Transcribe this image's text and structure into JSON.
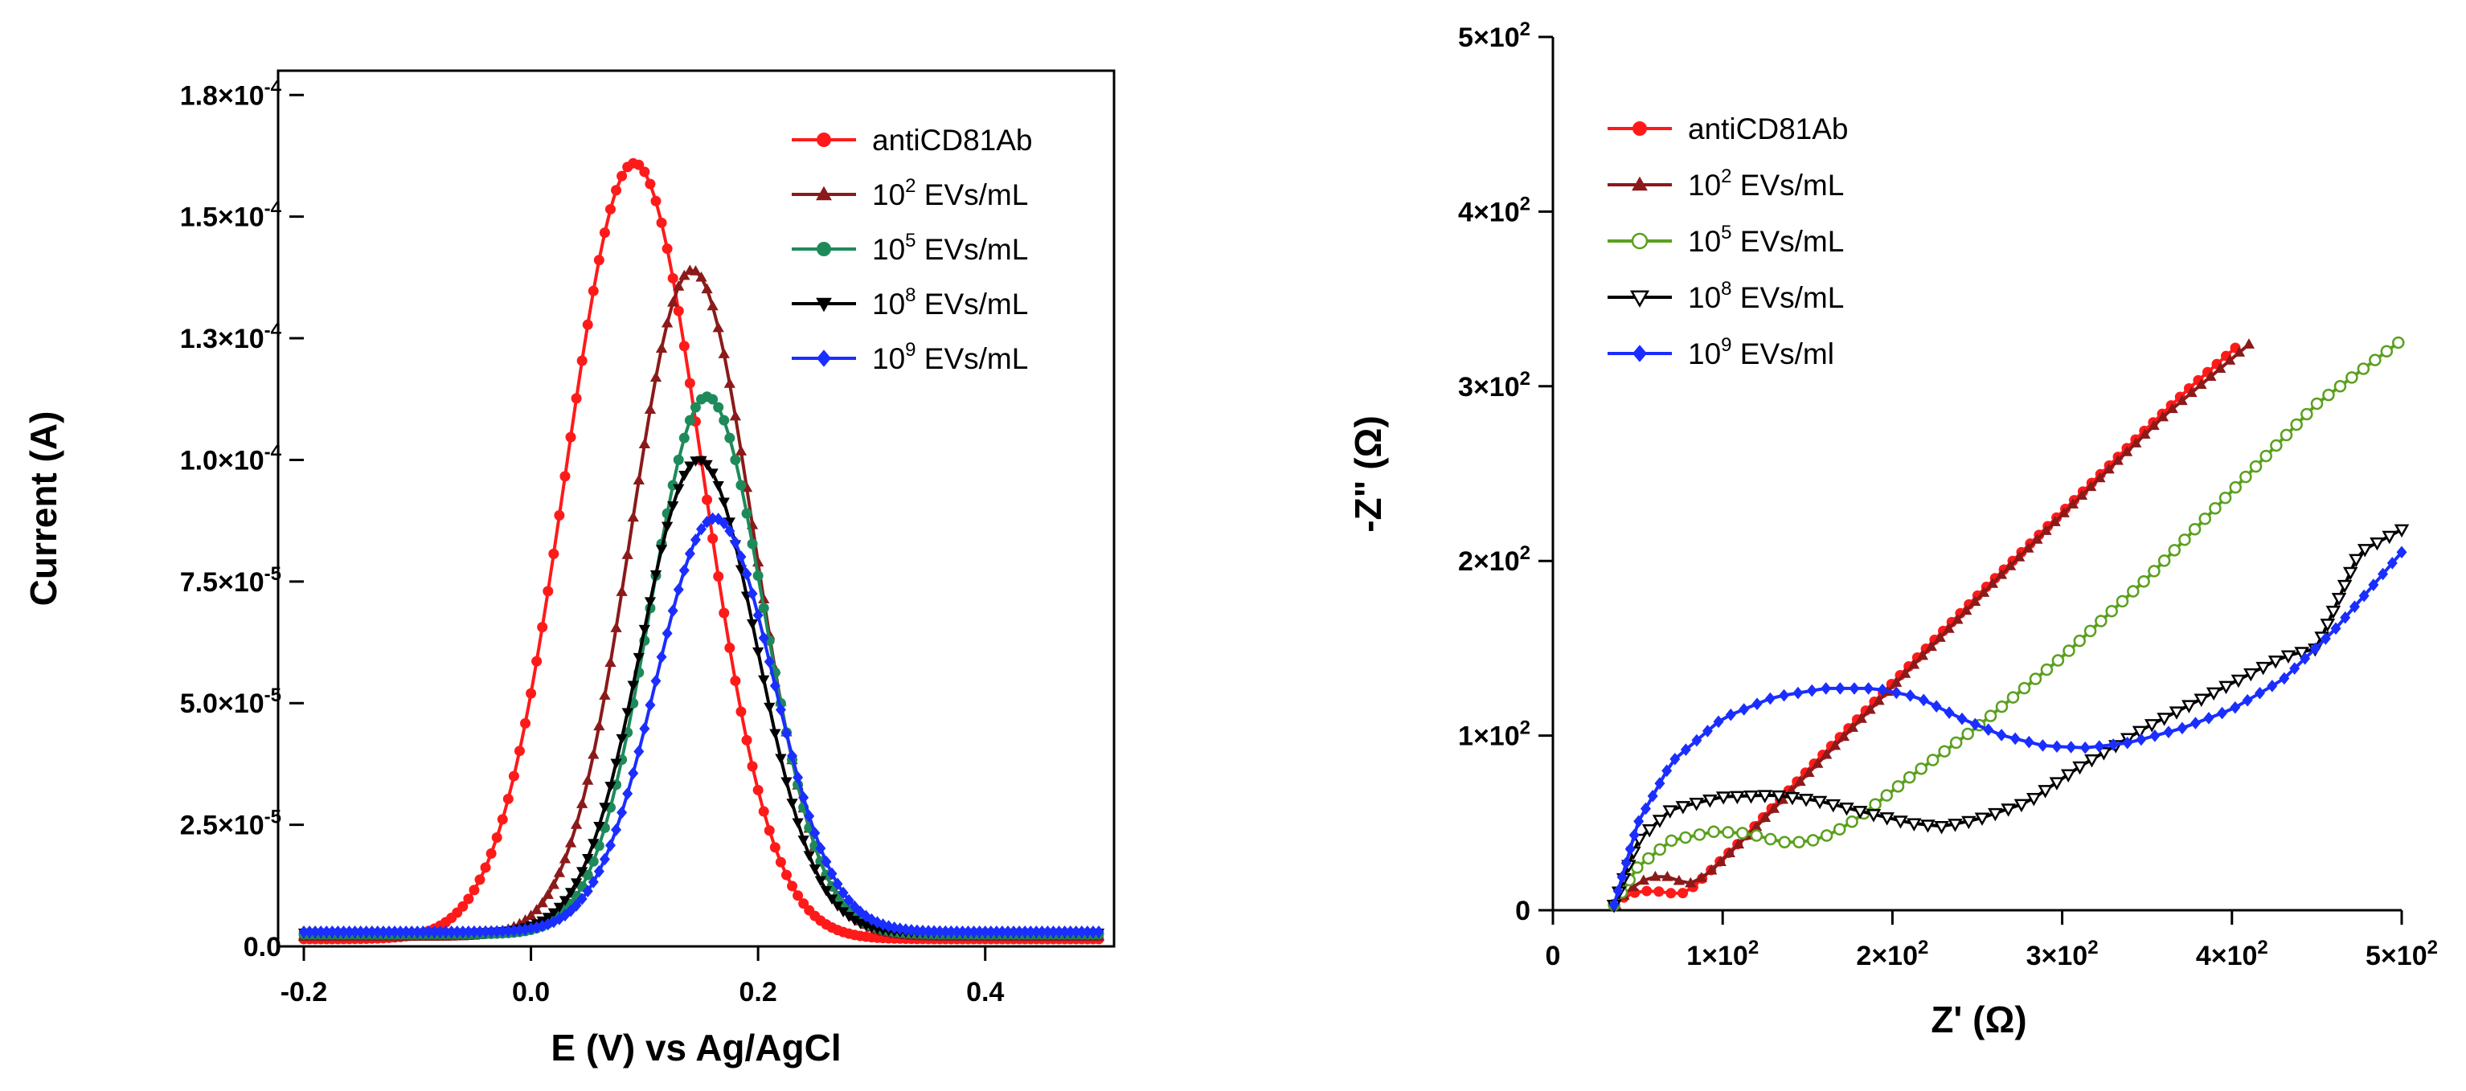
{
  "colors": {
    "antiCD81Ab": "#ff1a1a",
    "e2": "#8b1a1a",
    "e5_dpv": "#1e8a5a",
    "e5_eis": "#5aa01e",
    "e8": "#000000",
    "e9": "#1a2eff"
  },
  "chart_data": [
    {
      "type": "line",
      "title": "",
      "xlabel": "E (V) vs Ag/AgCl",
      "ylabel": "Current (A)",
      "xlim": [
        -0.2,
        0.5
      ],
      "ylim": [
        0,
        0.00018
      ],
      "grid": false,
      "legend_position": "top-right",
      "x_ticks": [
        {
          "value": -0.2,
          "label": "-0.2"
        },
        {
          "value": 0.0,
          "label": "0.0"
        },
        {
          "value": 0.2,
          "label": "0.2"
        },
        {
          "value": 0.4,
          "label": "0.4"
        }
      ],
      "y_ticks": [
        {
          "value": 0,
          "mant": "0.0",
          "exp": ""
        },
        {
          "value": 2.5e-05,
          "mant": "2.5×10",
          "exp": "-5"
        },
        {
          "value": 5e-05,
          "mant": "5.0×10",
          "exp": "-5"
        },
        {
          "value": 7.5e-05,
          "mant": "7.5×10",
          "exp": "-5"
        },
        {
          "value": 0.0001,
          "mant": "1.0×10",
          "exp": "-4"
        },
        {
          "value": 0.000125,
          "mant": "1.3×10",
          "exp": "-4"
        },
        {
          "value": 0.00015,
          "mant": "1.5×10",
          "exp": "-4"
        },
        {
          "value": 0.000175,
          "mant": "1.8×10",
          "exp": "-4"
        }
      ],
      "series": [
        {
          "name": "antiCD81Ab",
          "legend_base": "antiCD81Ab",
          "legend_exp": "",
          "legend_suffix": "",
          "color_key": "antiCD81Ab",
          "marker": "circle",
          "model": "gauss",
          "peak_x": 0.091,
          "peak_y": 0.000161,
          "sigma": 0.06,
          "baseline": 1.5e-06
        },
        {
          "name": "10^2 EVs/mL",
          "legend_base": "10",
          "legend_exp": "2",
          "legend_suffix": " EVs/mL",
          "color_key": "e2",
          "marker": "triangle-up",
          "model": "gauss",
          "peak_x": 0.142,
          "peak_y": 0.000139,
          "sigma": 0.054,
          "baseline": 2e-06
        },
        {
          "name": "10^5 EVs/mL",
          "legend_base": "10",
          "legend_exp": "5",
          "legend_suffix": " EVs/mL",
          "color_key": "e5_dpv",
          "marker": "circle",
          "model": "gauss",
          "peak_x": 0.155,
          "peak_y": 0.000113,
          "sigma": 0.05,
          "baseline": 2.5e-06
        },
        {
          "name": "10^8 EVs/mL",
          "legend_base": "10",
          "legend_exp": "8",
          "legend_suffix": " EVs/mL",
          "color_key": "e8",
          "marker": "triangle-down",
          "model": "gauss",
          "peak_x": 0.148,
          "peak_y": 0.0001,
          "sigma": 0.051,
          "baseline": 2.8e-06
        },
        {
          "name": "10^9 EVs/mL",
          "legend_base": "10",
          "legend_exp": "9",
          "legend_suffix": " EVs/mL",
          "color_key": "e9",
          "marker": "diamond",
          "model": "gauss",
          "peak_x": 0.162,
          "peak_y": 8.8e-05,
          "sigma": 0.052,
          "baseline": 3e-06
        }
      ]
    },
    {
      "type": "line",
      "title": "",
      "xlabel": "Z' (Ω)",
      "ylabel": "-Z\" (Ω)",
      "xlim": [
        0,
        500
      ],
      "ylim": [
        0,
        500
      ],
      "grid": false,
      "legend_position": "top-left",
      "x_ticks": [
        {
          "value": 0,
          "mant": "0",
          "exp": ""
        },
        {
          "value": 100,
          "mant": "1×10",
          "exp": "2"
        },
        {
          "value": 200,
          "mant": "2×10",
          "exp": "2"
        },
        {
          "value": 300,
          "mant": "3×10",
          "exp": "2"
        },
        {
          "value": 400,
          "mant": "4×10",
          "exp": "2"
        },
        {
          "value": 500,
          "mant": "5×10",
          "exp": "2"
        }
      ],
      "y_ticks": [
        {
          "value": 0,
          "mant": "0",
          "exp": ""
        },
        {
          "value": 100,
          "mant": "1×10",
          "exp": "2"
        },
        {
          "value": 200,
          "mant": "2×10",
          "exp": "2"
        },
        {
          "value": 300,
          "mant": "3×10",
          "exp": "2"
        },
        {
          "value": 400,
          "mant": "4×10",
          "exp": "2"
        },
        {
          "value": 500,
          "mant": "5×10",
          "exp": "2"
        }
      ],
      "series": [
        {
          "name": "antiCD81Ab",
          "legend_base": "antiCD81Ab",
          "legend_exp": "",
          "legend_suffix": "",
          "color_key": "antiCD81Ab",
          "marker": "circle",
          "model": "nyquist",
          "anchors": [
            [
              36,
              3
            ],
            [
              44,
              9
            ],
            [
              52,
              11
            ],
            [
              60,
              11
            ],
            [
              68,
              10
            ],
            [
              74,
              9
            ],
            [
              80,
              11
            ],
            [
              90,
              20
            ],
            [
              110,
              39
            ],
            [
              150,
              80
            ],
            [
              200,
              130
            ],
            [
              250,
              180
            ],
            [
              300,
              228
            ],
            [
              350,
              276
            ],
            [
              375,
              299
            ],
            [
              402,
              322
            ]
          ]
        },
        {
          "name": "10^2 EVs/mL",
          "legend_base": "10",
          "legend_exp": "2",
          "legend_suffix": " EVs/mL",
          "color_key": "e2",
          "marker": "triangle-up",
          "model": "nyquist",
          "anchors": [
            [
              37,
              3
            ],
            [
              45,
              12
            ],
            [
              55,
              18
            ],
            [
              64,
              20
            ],
            [
              72,
              18
            ],
            [
              78,
              15
            ],
            [
              84,
              16
            ],
            [
              95,
              24
            ],
            [
              120,
              48
            ],
            [
              160,
              88
            ],
            [
              210,
              138
            ],
            [
              260,
              188
            ],
            [
              310,
              236
            ],
            [
              360,
              283
            ],
            [
              410,
              324
            ]
          ]
        },
        {
          "name": "10^5 EVs/mL",
          "legend_base": "10",
          "legend_exp": "5",
          "legend_suffix": " EVs/mL",
          "color_key": "e5_eis",
          "marker": "circle-open",
          "model": "nyquist",
          "anchors": [
            [
              36,
              3
            ],
            [
              50,
              25
            ],
            [
              70,
              40
            ],
            [
              95,
              45
            ],
            [
              115,
              44
            ],
            [
              135,
              39
            ],
            [
              150,
              39
            ],
            [
              165,
              44
            ],
            [
              180,
              53
            ],
            [
              210,
              76
            ],
            [
              250,
              105
            ],
            [
              300,
              145
            ],
            [
              350,
              190
            ],
            [
              400,
              240
            ],
            [
              450,
              290
            ],
            [
              498,
              325
            ]
          ]
        },
        {
          "name": "10^8 EVs/mL",
          "legend_base": "10",
          "legend_exp": "8",
          "legend_suffix": " EVs/mL",
          "color_key": "e8",
          "marker": "triangle-down-open",
          "model": "nyquist",
          "anchors": [
            [
              36,
              3
            ],
            [
              50,
              40
            ],
            [
              70,
              58
            ],
            [
              100,
              65
            ],
            [
              130,
              66
            ],
            [
              155,
              63
            ],
            [
              180,
              57
            ],
            [
              210,
              50
            ],
            [
              230,
              48
            ],
            [
              250,
              52
            ],
            [
              280,
              62
            ],
            [
              310,
              82
            ],
            [
              350,
              105
            ],
            [
              390,
              125
            ],
            [
              430,
              145
            ],
            [
              450,
              150
            ],
            [
              475,
              205
            ],
            [
              500,
              218
            ]
          ]
        },
        {
          "name": "10^9 EVs/ml",
          "legend_base": "10",
          "legend_exp": "9",
          "legend_suffix": " EVs/ml",
          "color_key": "e9",
          "marker": "diamond",
          "model": "nyquist",
          "anchors": [
            [
              36,
              3
            ],
            [
              50,
              50
            ],
            [
              70,
              85
            ],
            [
              100,
              110
            ],
            [
              130,
              122
            ],
            [
              160,
              127
            ],
            [
              190,
              127
            ],
            [
              215,
              122
            ],
            [
              240,
              110
            ],
            [
              265,
              100
            ],
            [
              290,
              94
            ],
            [
              315,
              93
            ],
            [
              340,
              96
            ],
            [
              370,
              104
            ],
            [
              400,
              115
            ],
            [
              430,
              132
            ],
            [
              460,
              160
            ],
            [
              500,
              205
            ]
          ]
        }
      ]
    }
  ]
}
